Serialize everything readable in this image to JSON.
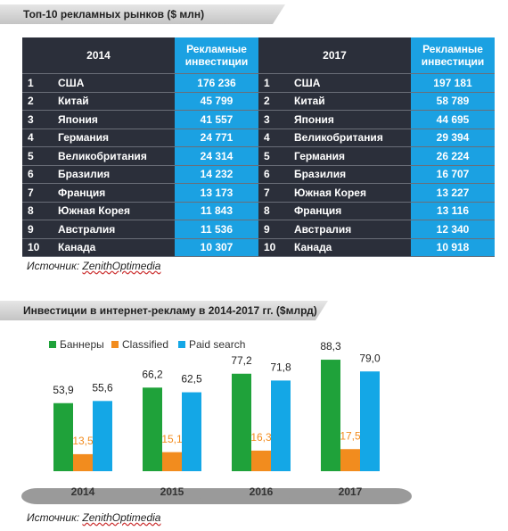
{
  "table_title": "Топ-10 рекламных рынков ($ млн)",
  "table": {
    "headers": [
      "2014",
      "Рекламные инвестиции",
      "2017",
      "Рекламные инвестиции"
    ],
    "rows": [
      [
        "1",
        "США",
        "176 236",
        "1",
        "США",
        "197 181"
      ],
      [
        "2",
        "Китай",
        "45 799",
        "2",
        "Китай",
        "58 789"
      ],
      [
        "3",
        "Япония",
        "41 557",
        "3",
        "Япония",
        "44 695"
      ],
      [
        "4",
        "Германия",
        "24 771",
        "4",
        "Великобритания",
        "29 394"
      ],
      [
        "5",
        "Великобритания",
        "24 314",
        "5",
        "Германия",
        "26 224"
      ],
      [
        "6",
        "Бразилия",
        "14 232",
        "6",
        "Бразилия",
        "16 707"
      ],
      [
        "7",
        "Франция",
        "13 173",
        "7",
        "Южная Корея",
        "13 227"
      ],
      [
        "8",
        "Южная Корея",
        "11 843",
        "8",
        "Франция",
        "13 116"
      ],
      [
        "9",
        "Австралия",
        "11 536",
        "9",
        "Австралия",
        "12 340"
      ],
      [
        "10",
        "Канада",
        "10 307",
        "10",
        "Канада",
        "10 918"
      ]
    ]
  },
  "source_1": {
    "prefix": "Источник:",
    "name": "ZenithOptimedia"
  },
  "chart_data": {
    "type": "bar",
    "title": "Инвестиции в интернет-рекламу в 2014-2017 гг. ($млрд)",
    "categories": [
      "2014",
      "2015",
      "2016",
      "2017"
    ],
    "ylim": [
      0,
      100
    ],
    "series": [
      {
        "name": "Баннеры",
        "color": "#1fa23a",
        "values": [
          53.9,
          66.2,
          77.2,
          88.3
        ],
        "value_labels": [
          "53,9",
          "66,2",
          "77,2",
          "88,3"
        ]
      },
      {
        "name": "Classified",
        "color": "#f28c1e",
        "values": [
          13.5,
          15.1,
          16.3,
          17.5
        ],
        "value_labels": [
          "13,5",
          "15,1",
          "16,3",
          "17,5"
        ]
      },
      {
        "name": "Paid search",
        "color": "#14a7e6",
        "values": [
          55.6,
          62.5,
          71.8,
          79.0
        ],
        "value_labels": [
          "55,6",
          "62,5",
          "71,8",
          "79,0"
        ]
      }
    ]
  },
  "source_2": {
    "prefix": "Источник:",
    "name": "ZenithOptimedia"
  }
}
